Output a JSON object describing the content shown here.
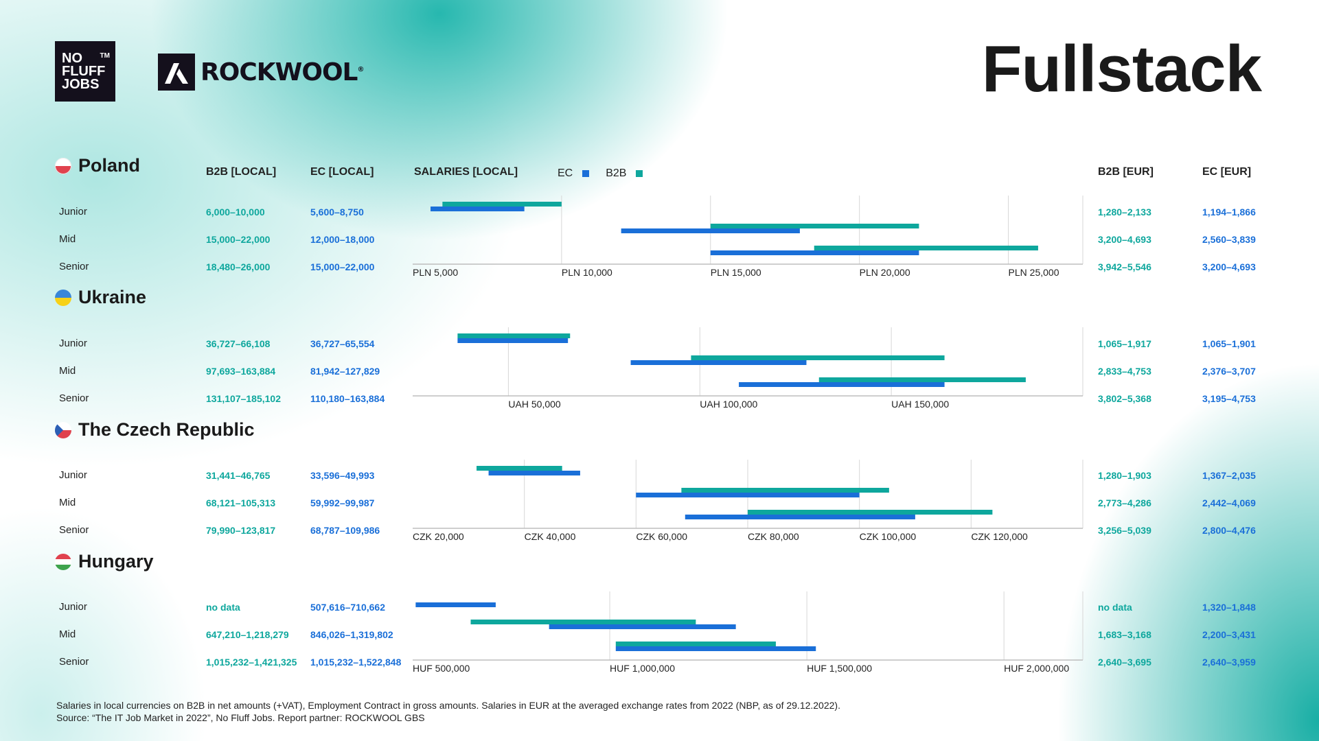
{
  "header": {
    "logo_nff": [
      "NO",
      "FLUFF",
      "JOBS"
    ],
    "logo_nff_tm": "TM",
    "logo_rockwool": "ROCKWOOL",
    "title": "Fullstack"
  },
  "columns": {
    "b2b_local": "B2B [LOCAL]",
    "ec_local": "EC [LOCAL]",
    "salaries_local": "SALARIES [LOCAL]",
    "b2b_eur": "B2B [EUR]",
    "ec_eur": "EC [EUR]"
  },
  "legend": {
    "ec": "EC",
    "b2b": "B2B"
  },
  "colors": {
    "ec": "#1a6fd8",
    "b2b": "#0ea79d",
    "axis": "#bdbdbd",
    "grid": "#d7d7d7"
  },
  "countries": [
    {
      "name": "Poland",
      "rows": [
        {
          "level": "Junior",
          "b2b_local": "6,000–10,000",
          "ec_local": "5,600–8,750",
          "b2b_eur": "1,280–2,133",
          "ec_eur": "1,194–1,866"
        },
        {
          "level": "Mid",
          "b2b_local": "15,000–22,000",
          "ec_local": "12,000–18,000",
          "b2b_eur": "3,200–4,693",
          "ec_eur": "2,560–3,839"
        },
        {
          "level": "Senior",
          "b2b_local": "18,480–26,000",
          "ec_local": "15,000–22,000",
          "b2b_eur": "3,942–5,546",
          "ec_eur": "3,200–4,693"
        }
      ]
    },
    {
      "name": "Ukraine",
      "rows": [
        {
          "level": "Junior",
          "b2b_local": "36,727–66,108",
          "ec_local": "36,727–65,554",
          "b2b_eur": "1,065–1,917",
          "ec_eur": "1,065–1,901"
        },
        {
          "level": "Mid",
          "b2b_local": "97,693–163,884",
          "ec_local": "81,942–127,829",
          "b2b_eur": "2,833–4,753",
          "ec_eur": "2,376–3,707"
        },
        {
          "level": "Senior",
          "b2b_local": "131,107–185,102",
          "ec_local": "110,180–163,884",
          "b2b_eur": "3,802–5,368",
          "ec_eur": "3,195–4,753"
        }
      ]
    },
    {
      "name": "The Czech Republic",
      "rows": [
        {
          "level": "Junior",
          "b2b_local": "31,441–46,765",
          "ec_local": "33,596–49,993",
          "b2b_eur": "1,280–1,903",
          "ec_eur": "1,367–2,035"
        },
        {
          "level": "Mid",
          "b2b_local": "68,121–105,313",
          "ec_local": "59,992–99,987",
          "b2b_eur": "2,773–4,286",
          "ec_eur": "2,442–4,069"
        },
        {
          "level": "Senior",
          "b2b_local": "79,990–123,817",
          "ec_local": "68,787–109,986",
          "b2b_eur": "3,256–5,039",
          "ec_eur": "2,800–4,476"
        }
      ]
    },
    {
      "name": "Hungary",
      "rows": [
        {
          "level": "Junior",
          "b2b_local": "no data",
          "ec_local": "507,616–710,662",
          "b2b_eur": "no data",
          "ec_eur": "1,320–1,848"
        },
        {
          "level": "Mid",
          "b2b_local": "647,210–1,218,279",
          "ec_local": "846,026–1,319,802",
          "b2b_eur": "1,683–3,168",
          "ec_eur": "2,200–3,431"
        },
        {
          "level": "Senior",
          "b2b_local": "1,015,232–1,421,325",
          "ec_local": "1,015,232–1,522,848",
          "b2b_eur": "2,640–3,695",
          "ec_eur": "2,640–3,959"
        }
      ]
    }
  ],
  "chart_data": [
    {
      "type": "bar",
      "country": "Poland",
      "currency": "PLN",
      "xlim": [
        5000,
        27500
      ],
      "ticks": [
        5000,
        10000,
        15000,
        20000,
        25000
      ],
      "tick_labels": [
        "PLN 5,000",
        "PLN 10,000",
        "PLN 15,000",
        "PLN 20,000",
        "PLN 25,000"
      ],
      "categories": [
        "Junior",
        "Mid",
        "Senior"
      ],
      "series": [
        {
          "name": "B2B",
          "ranges": [
            [
              6000,
              10000
            ],
            [
              15000,
              22000
            ],
            [
              18480,
              26000
            ]
          ]
        },
        {
          "name": "EC",
          "ranges": [
            [
              5600,
              8750
            ],
            [
              12000,
              18000
            ],
            [
              15000,
              22000
            ]
          ]
        }
      ]
    },
    {
      "type": "bar",
      "country": "Ukraine",
      "currency": "UAH",
      "xlim": [
        25000,
        200000
      ],
      "ticks": [
        50000,
        100000,
        150000
      ],
      "tick_labels": [
        "UAH 50,000",
        "UAH 100,000",
        "UAH 150,000"
      ],
      "categories": [
        "Junior",
        "Mid",
        "Senior"
      ],
      "series": [
        {
          "name": "B2B",
          "ranges": [
            [
              36727,
              66108
            ],
            [
              97693,
              163884
            ],
            [
              131107,
              185102
            ]
          ]
        },
        {
          "name": "EC",
          "ranges": [
            [
              36727,
              65554
            ],
            [
              81942,
              127829
            ],
            [
              110180,
              163884
            ]
          ]
        }
      ]
    },
    {
      "type": "bar",
      "country": "The Czech Republic",
      "currency": "CZK",
      "xlim": [
        20000,
        140000
      ],
      "ticks": [
        20000,
        40000,
        60000,
        80000,
        100000,
        120000
      ],
      "tick_labels": [
        "CZK 20,000",
        "CZK 40,000",
        "CZK 60,000",
        "CZK 80,000",
        "CZK 100,000",
        "CZK 120,000"
      ],
      "categories": [
        "Junior",
        "Mid",
        "Senior"
      ],
      "series": [
        {
          "name": "B2B",
          "ranges": [
            [
              31441,
              46765
            ],
            [
              68121,
              105313
            ],
            [
              79990,
              123817
            ]
          ]
        },
        {
          "name": "EC",
          "ranges": [
            [
              33596,
              49993
            ],
            [
              59992,
              99987
            ],
            [
              68787,
              109986
            ]
          ]
        }
      ]
    },
    {
      "type": "bar",
      "country": "Hungary",
      "currency": "HUF",
      "xlim": [
        500000,
        2200000
      ],
      "ticks": [
        500000,
        1000000,
        1500000,
        2000000
      ],
      "tick_labels": [
        "HUF 500,000",
        "HUF 1,000,000",
        "HUF 1,500,000",
        "HUF 2,000,000"
      ],
      "categories": [
        "Junior",
        "Mid",
        "Senior"
      ],
      "series": [
        {
          "name": "B2B",
          "ranges": [
            null,
            [
              647210,
              1218279
            ],
            [
              1015232,
              1421325
            ]
          ]
        },
        {
          "name": "EC",
          "ranges": [
            [
              507616,
              710662
            ],
            [
              846026,
              1319802
            ],
            [
              1015232,
              1522848
            ]
          ]
        }
      ]
    }
  ],
  "footnote": [
    "Salaries in local currencies on B2B in net amounts (+VAT), Employment Contract in gross amounts. Salaries in EUR at the averaged exchange rates from 2022 (NBP, as of 29.12.2022).",
    "Source: “The IT Job Market in 2022”, No Fluff Jobs. Report partner: ROCKWOOL GBS"
  ]
}
